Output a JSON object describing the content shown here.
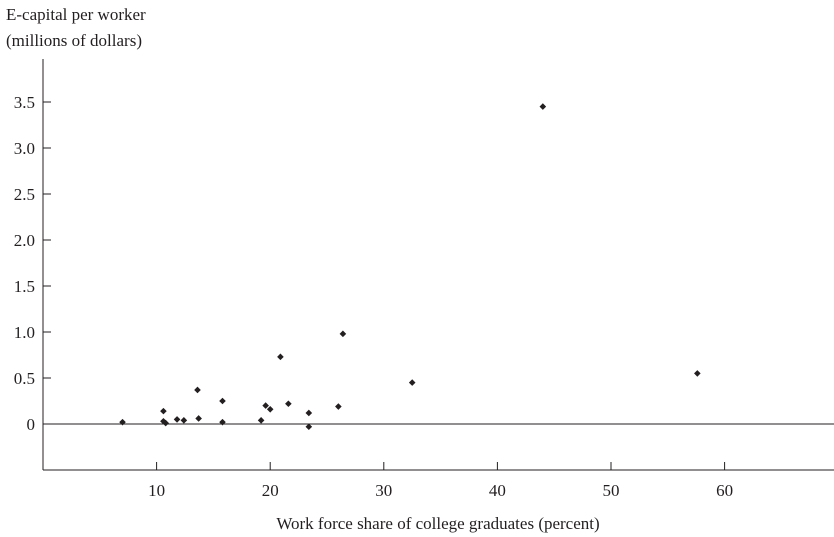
{
  "chart_data": {
    "type": "scatter",
    "title": "",
    "ylabel_lines": [
      "E-capital per worker",
      "(millions of dollars)"
    ],
    "xlabel": "Work force share of college graduates (percent)",
    "xlim": [
      0,
      69
    ],
    "ylim": [
      -0.5,
      3.95
    ],
    "x_ticks": [
      10,
      20,
      30,
      40,
      50,
      60
    ],
    "y_ticks": [
      0,
      0.5,
      1.0,
      1.5,
      2.0,
      2.5,
      3.0,
      3.5
    ],
    "y_tick_labels": [
      "0",
      "0.5",
      "1.0",
      "1.5",
      "2.0",
      "2.5",
      "3.0",
      "3.5"
    ],
    "zero_line": true,
    "grid": false,
    "points": [
      {
        "x": 7.0,
        "y": 0.02
      },
      {
        "x": 10.6,
        "y": 0.14
      },
      {
        "x": 10.6,
        "y": 0.03
      },
      {
        "x": 10.8,
        "y": 0.01
      },
      {
        "x": 11.8,
        "y": 0.05
      },
      {
        "x": 12.4,
        "y": 0.04
      },
      {
        "x": 13.6,
        "y": 0.37
      },
      {
        "x": 13.7,
        "y": 0.06
      },
      {
        "x": 15.8,
        "y": 0.25
      },
      {
        "x": 15.8,
        "y": 0.02
      },
      {
        "x": 19.2,
        "y": 0.04
      },
      {
        "x": 19.6,
        "y": 0.2
      },
      {
        "x": 20.0,
        "y": 0.16
      },
      {
        "x": 20.9,
        "y": 0.73
      },
      {
        "x": 21.6,
        "y": 0.22
      },
      {
        "x": 23.4,
        "y": 0.12
      },
      {
        "x": 23.4,
        "y": -0.03
      },
      {
        "x": 26.0,
        "y": 0.19
      },
      {
        "x": 26.4,
        "y": 0.98
      },
      {
        "x": 32.5,
        "y": 0.45
      },
      {
        "x": 44.0,
        "y": 3.45
      },
      {
        "x": 57.6,
        "y": 0.55
      }
    ]
  }
}
